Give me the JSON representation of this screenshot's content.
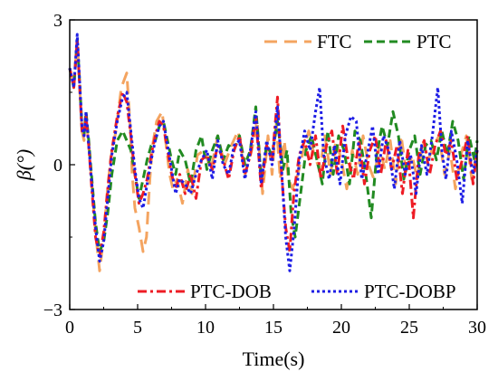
{
  "chart_data": {
    "type": "line",
    "title": "",
    "xlabel": "Time(s)",
    "ylabel": "β(°)",
    "xlim": [
      0,
      30
    ],
    "ylim": [
      -3,
      3
    ],
    "x_ticks": [
      "0",
      "5",
      "10",
      "15",
      "20",
      "25",
      "30"
    ],
    "y_ticks": [
      "3",
      "0",
      "−3"
    ],
    "grid": false,
    "series": [
      {
        "name": "FTC",
        "color": "#f4a460",
        "dash": "long-dash",
        "x": [
          0,
          0.3,
          0.55,
          0.75,
          0.9,
          1.05,
          1.2,
          1.4,
          1.6,
          1.9,
          2.2,
          2.5,
          2.75,
          3.0,
          3.4,
          3.8,
          4.2,
          4.45,
          4.6,
          4.8,
          5.1,
          5.4,
          5.65,
          5.9,
          6.1,
          6.4,
          6.8,
          7.1,
          7.35,
          7.6,
          7.9,
          8.3,
          8.7,
          9.0,
          9.4,
          9.9,
          10.4,
          10.9,
          11.4,
          11.9,
          12.4,
          12.9,
          13.4,
          13.8,
          14.2,
          14.6,
          14.9,
          15.2,
          15.5,
          15.8,
          16.1,
          16.4,
          16.8,
          17.2,
          17.6,
          18.0,
          18.4,
          18.8,
          19.2,
          19.6,
          20.0,
          20.4,
          20.8,
          21.2,
          21.6,
          22.0,
          22.4,
          22.8,
          23.2,
          23.6,
          24.0,
          24.4,
          24.8,
          25.2,
          25.6,
          26.0,
          26.4,
          26.8,
          27.2,
          27.6,
          28.0,
          28.4,
          28.8,
          29.2,
          29.6,
          30.0
        ],
        "y": [
          2.0,
          1.6,
          2.6,
          1.5,
          0.7,
          0.5,
          1.0,
          0.4,
          -0.3,
          -1.4,
          -2.2,
          -1.5,
          -0.6,
          0.1,
          0.7,
          1.6,
          1.9,
          0.8,
          -0.2,
          -0.9,
          -1.3,
          -1.8,
          -1.5,
          -0.3,
          0.4,
          0.9,
          1.1,
          0.4,
          -0.2,
          -0.5,
          -0.3,
          -0.8,
          -0.1,
          -0.6,
          0.2,
          0.3,
          -0.1,
          0.6,
          0.0,
          0.4,
          0.7,
          -0.2,
          0.3,
          0.9,
          -0.6,
          0.6,
          -0.2,
          0.9,
          -0.3,
          0.5,
          -0.3,
          -0.5,
          -0.2,
          0.3,
          0.7,
          0.2,
          -0.1,
          0.6,
          -0.2,
          0.5,
          0.1,
          -0.5,
          0.3,
          -0.2,
          0.6,
          0.0,
          -0.3,
          0.4,
          -0.1,
          0.5,
          -0.4,
          0.6,
          -0.2,
          0.2,
          -0.3,
          0.5,
          0.1,
          0.4,
          0.6,
          -0.2,
          0.3,
          -0.5,
          0.2,
          0.6,
          -0.3,
          0.3
        ]
      },
      {
        "name": "PTC",
        "color": "#228b22",
        "dash": "dash",
        "x": [
          0,
          0.3,
          0.55,
          0.75,
          0.9,
          1.05,
          1.2,
          1.4,
          1.6,
          1.9,
          2.2,
          2.5,
          2.8,
          3.1,
          3.5,
          3.9,
          4.2,
          4.5,
          4.8,
          5.1,
          5.4,
          5.7,
          6.0,
          6.3,
          6.6,
          6.9,
          7.2,
          7.5,
          7.8,
          8.1,
          8.5,
          8.9,
          9.3,
          9.7,
          10.1,
          10.5,
          10.9,
          11.3,
          11.7,
          12.1,
          12.5,
          12.9,
          13.3,
          13.7,
          14.1,
          14.5,
          14.9,
          15.3,
          15.7,
          16.0,
          16.3,
          16.6,
          17.0,
          17.4,
          17.8,
          18.2,
          18.6,
          19.0,
          19.4,
          19.8,
          20.2,
          20.6,
          21.0,
          21.4,
          21.8,
          22.2,
          22.6,
          23.0,
          23.4,
          23.8,
          24.2,
          24.6,
          25.0,
          25.4,
          25.8,
          26.2,
          26.6,
          27.0,
          27.4,
          27.8,
          28.2,
          28.6,
          29.0,
          29.4,
          29.8,
          30.0
        ],
        "y": [
          2.0,
          1.6,
          2.6,
          1.6,
          0.8,
          0.6,
          1.1,
          0.5,
          -0.2,
          -1.2,
          -1.8,
          -1.6,
          -1.0,
          -0.2,
          0.5,
          0.7,
          0.5,
          0.3,
          -0.2,
          -0.7,
          -0.3,
          0.1,
          0.4,
          0.5,
          0.8,
          0.9,
          0.5,
          0.1,
          -0.2,
          0.3,
          0.1,
          -0.4,
          0.3,
          0.6,
          -0.1,
          0.3,
          0.6,
          0.1,
          0.4,
          0.3,
          0.6,
          0.0,
          0.3,
          1.2,
          -0.3,
          0.4,
          0.2,
          0.9,
          -0.1,
          0.3,
          -1.0,
          -1.5,
          -0.6,
          0.3,
          0.6,
          0.1,
          -0.4,
          0.7,
          -0.2,
          0.6,
          0.3,
          -0.4,
          0.7,
          0.5,
          -0.2,
          -1.1,
          0.2,
          0.8,
          0.4,
          1.1,
          0.6,
          -0.3,
          0.3,
          0.6,
          -0.2,
          0.4,
          0.5,
          0.1,
          0.7,
          0.2,
          0.9,
          0.5,
          -0.3,
          0.6,
          0.1,
          0.5
        ]
      },
      {
        "name": "PTC-DOB",
        "color": "#ee1c25",
        "dash": "dash-dot",
        "x": [
          0,
          0.3,
          0.55,
          0.75,
          0.9,
          1.05,
          1.2,
          1.4,
          1.6,
          1.9,
          2.2,
          2.5,
          2.8,
          3.1,
          3.5,
          3.9,
          4.2,
          4.5,
          4.8,
          5.1,
          5.4,
          5.7,
          6.0,
          6.3,
          6.6,
          6.9,
          7.2,
          7.5,
          7.8,
          8.1,
          8.5,
          8.9,
          9.3,
          9.7,
          10.1,
          10.5,
          10.9,
          11.3,
          11.7,
          12.1,
          12.5,
          12.9,
          13.3,
          13.7,
          14.1,
          14.5,
          14.9,
          15.3,
          15.6,
          15.9,
          16.2,
          16.5,
          16.9,
          17.3,
          17.7,
          18.1,
          18.5,
          18.9,
          19.3,
          19.7,
          20.1,
          20.5,
          20.9,
          21.3,
          21.7,
          22.1,
          22.5,
          22.9,
          23.3,
          23.7,
          24.1,
          24.5,
          24.9,
          25.3,
          25.7,
          26.1,
          26.5,
          26.9,
          27.3,
          27.7,
          28.1,
          28.5,
          28.9,
          29.3,
          29.7,
          30.0
        ],
        "y": [
          2.0,
          1.6,
          2.6,
          1.5,
          0.7,
          0.6,
          1.0,
          0.4,
          -0.4,
          -1.5,
          -1.9,
          -1.4,
          -0.5,
          0.3,
          1.0,
          1.5,
          1.3,
          0.6,
          -0.2,
          -0.8,
          -0.6,
          -0.3,
          0.2,
          0.6,
          0.9,
          0.8,
          0.3,
          -0.2,
          -0.5,
          -0.2,
          -0.6,
          -0.2,
          -0.7,
          0.1,
          0.2,
          -0.1,
          0.4,
          0.1,
          -0.3,
          0.3,
          0.6,
          -0.2,
          0.2,
          1.0,
          -0.5,
          0.4,
          0.1,
          1.4,
          -0.2,
          -1.3,
          -1.8,
          -0.6,
          0.2,
          0.5,
          0.0,
          0.6,
          -0.3,
          0.4,
          0.7,
          -0.2,
          0.8,
          0.1,
          -0.3,
          0.5,
          -0.4,
          0.3,
          0.6,
          -0.2,
          0.5,
          -0.1,
          0.4,
          -0.6,
          0.3,
          -1.1,
          0.2,
          0.5,
          -0.2,
          0.4,
          0.7,
          0.2,
          0.5,
          -0.3,
          0.1,
          0.6,
          -0.4,
          0.3
        ]
      },
      {
        "name": "PTC-DOBP",
        "color": "#1e1ee6",
        "dash": "dot",
        "x": [
          0,
          0.3,
          0.55,
          0.75,
          0.9,
          1.05,
          1.2,
          1.4,
          1.6,
          1.9,
          2.2,
          2.5,
          2.8,
          3.1,
          3.5,
          3.9,
          4.2,
          4.5,
          4.8,
          5.1,
          5.4,
          5.7,
          6.0,
          6.3,
          6.6,
          6.9,
          7.2,
          7.5,
          7.8,
          8.1,
          8.5,
          8.9,
          9.3,
          9.7,
          10.1,
          10.5,
          10.9,
          11.3,
          11.7,
          12.1,
          12.5,
          12.9,
          13.3,
          13.7,
          14.1,
          14.5,
          14.9,
          15.3,
          15.6,
          15.9,
          16.2,
          16.5,
          16.9,
          17.3,
          17.7,
          18.1,
          18.4,
          18.7,
          19.1,
          19.5,
          19.9,
          20.3,
          20.7,
          21.1,
          21.5,
          21.9,
          22.3,
          22.7,
          23.1,
          23.5,
          23.9,
          24.3,
          24.7,
          25.1,
          25.5,
          25.9,
          26.3,
          26.7,
          27.1,
          27.4,
          27.7,
          28.1,
          28.5,
          28.9,
          29.3,
          29.7,
          30.0
        ],
        "y": [
          2.0,
          1.6,
          2.7,
          1.6,
          0.8,
          0.6,
          1.1,
          0.4,
          -0.3,
          -1.3,
          -2.0,
          -1.6,
          -0.7,
          0.2,
          0.9,
          1.4,
          1.5,
          0.7,
          -0.1,
          -0.7,
          -0.9,
          -0.4,
          0.1,
          0.5,
          0.8,
          0.9,
          0.4,
          -0.1,
          -0.6,
          -0.3,
          -0.4,
          -0.6,
          -0.2,
          0.1,
          0.3,
          -0.3,
          0.5,
          0.0,
          -0.2,
          0.4,
          0.5,
          -0.3,
          0.3,
          1.1,
          -0.4,
          0.5,
          0.0,
          1.2,
          -0.1,
          -1.5,
          -2.2,
          -1.4,
          0.1,
          0.7,
          0.3,
          1.1,
          1.6,
          0.2,
          -0.3,
          0.4,
          -0.4,
          0.6,
          1.0,
          0.9,
          -0.3,
          0.2,
          0.8,
          -0.2,
          0.6,
          0.3,
          -0.5,
          0.5,
          -0.2,
          0.2,
          -0.6,
          0.4,
          -0.2,
          0.6,
          1.6,
          0.3,
          -0.3,
          0.7,
          0.1,
          -0.8,
          0.5,
          -0.2,
          0.3
        ]
      }
    ]
  }
}
